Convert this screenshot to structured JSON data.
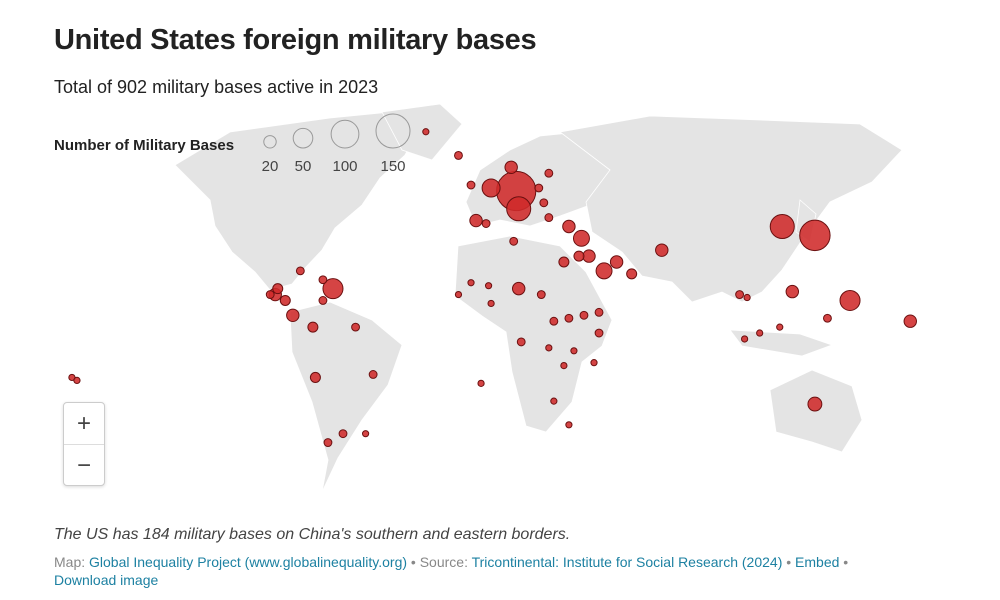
{
  "header": {
    "title": "United States foreign military bases",
    "subtitle": "Total of 902 military bases active in 2023"
  },
  "legend": {
    "title": "Number of Military Bases",
    "sizes": [
      20,
      50,
      100,
      150
    ]
  },
  "map": {
    "bubbles": [
      {
        "lon": 20,
        "lat": 49,
        "value": 200
      },
      {
        "lon": 21,
        "lat": 43,
        "value": 75
      },
      {
        "lon": 10,
        "lat": 50,
        "value": 42
      },
      {
        "lon": 18,
        "lat": 57,
        "value": 20
      },
      {
        "lon": 139,
        "lat": 34,
        "value": 120
      },
      {
        "lon": 126,
        "lat": 37,
        "value": 75
      },
      {
        "lon": 153,
        "lat": 12,
        "value": 52
      },
      {
        "lon": 130,
        "lat": 15,
        "value": 20
      },
      {
        "lon": -53,
        "lat": 16,
        "value": 52
      },
      {
        "lon": 46,
        "lat": 33,
        "value": 33
      },
      {
        "lon": 41,
        "lat": 37,
        "value": 20
      },
      {
        "lon": 55,
        "lat": 22,
        "value": 33
      },
      {
        "lon": 49,
        "lat": 27,
        "value": 20
      },
      {
        "lon": 60,
        "lat": 25,
        "value": 20
      },
      {
        "lon": 66,
        "lat": 21,
        "value": 13
      },
      {
        "lon": 39,
        "lat": 25,
        "value": 13
      },
      {
        "lon": 45,
        "lat": 27,
        "value": 13
      },
      {
        "lon": 4,
        "lat": 39,
        "value": 20
      },
      {
        "lon": 8,
        "lat": 38,
        "value": 8
      },
      {
        "lon": 19,
        "lat": 32,
        "value": 8
      },
      {
        "lon": 33,
        "lat": 40,
        "value": 8
      },
      {
        "lon": 31,
        "lat": 45,
        "value": 8
      },
      {
        "lon": 29,
        "lat": 50,
        "value": 8
      },
      {
        "lon": 33,
        "lat": 55,
        "value": 8
      },
      {
        "lon": -3,
        "lat": 61,
        "value": 8
      },
      {
        "lon": -16,
        "lat": 69,
        "value": 5
      },
      {
        "lon": 2,
        "lat": 51,
        "value": 8
      },
      {
        "lon": 78,
        "lat": 29,
        "value": 20
      },
      {
        "lon": 21,
        "lat": 16,
        "value": 20
      },
      {
        "lon": 30,
        "lat": 14,
        "value": 8
      },
      {
        "lon": -76,
        "lat": 14,
        "value": 20
      },
      {
        "lon": -72,
        "lat": 12,
        "value": 13
      },
      {
        "lon": -69,
        "lat": 7,
        "value": 20
      },
      {
        "lon": -75,
        "lat": 16,
        "value": 13
      },
      {
        "lon": -78,
        "lat": 14,
        "value": 8
      },
      {
        "lon": -66,
        "lat": 22,
        "value": 8
      },
      {
        "lon": -57,
        "lat": 19,
        "value": 8
      },
      {
        "lon": -57,
        "lat": 12,
        "value": 8
      },
      {
        "lon": -61,
        "lat": 3,
        "value": 13
      },
      {
        "lon": -44,
        "lat": 3,
        "value": 8
      },
      {
        "lon": -60,
        "lat": -14,
        "value": 13
      },
      {
        "lon": -37,
        "lat": -13,
        "value": 8
      },
      {
        "lon": -49,
        "lat": -33,
        "value": 8
      },
      {
        "lon": -55,
        "lat": -36,
        "value": 8
      },
      {
        "lon": -40,
        "lat": -33,
        "value": 5
      },
      {
        "lon": 2,
        "lat": 18,
        "value": 5
      },
      {
        "lon": 9,
        "lat": 17,
        "value": 5
      },
      {
        "lon": 10,
        "lat": 11,
        "value": 5
      },
      {
        "lon": -3,
        "lat": 14,
        "value": 5
      },
      {
        "lon": 35,
        "lat": 5,
        "value": 8
      },
      {
        "lon": 41,
        "lat": 6,
        "value": 8
      },
      {
        "lon": 47,
        "lat": 7,
        "value": 8
      },
      {
        "lon": 53,
        "lat": 1,
        "value": 8
      },
      {
        "lon": 22,
        "lat": -2,
        "value": 8
      },
      {
        "lon": 33,
        "lat": -4,
        "value": 5
      },
      {
        "lon": 43,
        "lat": -5,
        "value": 5
      },
      {
        "lon": 53,
        "lat": 8,
        "value": 8
      },
      {
        "lon": 39,
        "lat": -10,
        "value": 5
      },
      {
        "lon": 51,
        "lat": -9,
        "value": 5
      },
      {
        "lon": 35,
        "lat": -22,
        "value": 5
      },
      {
        "lon": 41,
        "lat": -30,
        "value": 5
      },
      {
        "lon": 109,
        "lat": 14,
        "value": 8
      },
      {
        "lon": 112,
        "lat": 13,
        "value": 5
      },
      {
        "lon": 111,
        "lat": -1,
        "value": 5
      },
      {
        "lon": 117,
        "lat": 1,
        "value": 5
      },
      {
        "lon": 125,
        "lat": 3,
        "value": 5
      },
      {
        "lon": 144,
        "lat": 6,
        "value": 8
      },
      {
        "lon": 177,
        "lat": 5,
        "value": 20
      },
      {
        "lon": 139,
        "lat": -23,
        "value": 25
      },
      {
        "lon": 6,
        "lat": -16,
        "value": 5
      },
      {
        "lon": -157,
        "lat": -14,
        "value": 5
      },
      {
        "lon": -155,
        "lat": -15,
        "value": 5
      }
    ]
  },
  "zoom": {
    "in": "+",
    "out": "−"
  },
  "note": "The US has 184 military bases on China's southern and eastern borders.",
  "footer": {
    "map_label": "Map:",
    "map_link": "Global Inequality Project (www.globalinequality.org)",
    "source_label": "Source:",
    "source_link": "Tricontinental: Institute for Social Research (2024)",
    "embed": "Embed",
    "download": "Download image"
  }
}
